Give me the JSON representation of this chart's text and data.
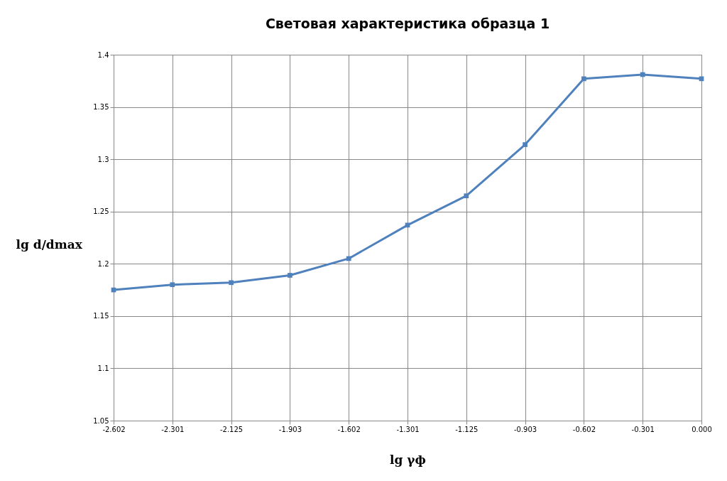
{
  "chart_data": {
    "type": "line",
    "title": "Световая характеристика образца 1",
    "xlabel": "lg γф",
    "ylabel": "lg d/dmax",
    "categories": [
      "-2.602",
      "-2.301",
      "-2.125",
      "-1.903",
      "-1.602",
      "-1.301",
      "-1.125",
      "-0.903",
      "-0.602",
      "-0.301",
      "0.000"
    ],
    "series": [
      {
        "color": "#4f81bd",
        "values": [
          1.175,
          1.18,
          1.182,
          1.189,
          1.205,
          1.237,
          1.265,
          1.314,
          1.377,
          1.381,
          1.377
        ]
      }
    ],
    "ylim": [
      1.05,
      1.4
    ],
    "yticks": [
      1.05,
      1.1,
      1.15,
      1.2,
      1.25,
      1.3,
      1.35,
      1.4
    ],
    "grid": true,
    "marker": "square",
    "line_style": "solid"
  }
}
